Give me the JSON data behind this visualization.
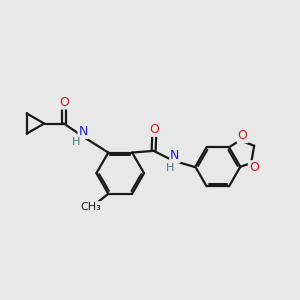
{
  "bg_color": "#e8e8e8",
  "bond_color": "#1a1a1a",
  "bond_width": 1.6,
  "dbo": 0.06,
  "atom_colors": {
    "N": "#1a1acc",
    "O": "#cc1a1a",
    "H": "#4a7a7a",
    "C": "#1a1a1a"
  },
  "fs": 8.5
}
